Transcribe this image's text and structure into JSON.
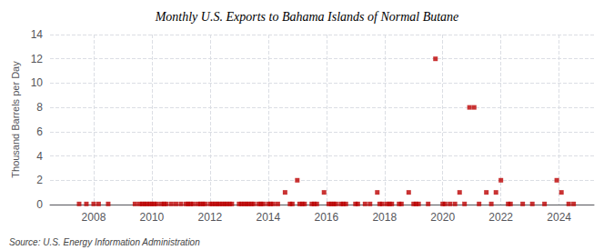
{
  "chart_data": {
    "type": "scatter",
    "title": "Monthly U.S. Exports to Bahama Islands of Normal Butane",
    "ylabel": "Thousand Barrels per Day",
    "annotations": [
      "Source: U.S. Energy Information Administration"
    ],
    "color": "#bb0000",
    "marker": "square",
    "grid": true,
    "xlim": [
      2006.5,
      2025.2
    ],
    "ylim": [
      0,
      14
    ],
    "xticks": [
      2008,
      2010,
      2012,
      2014,
      2016,
      2018,
      2020,
      2022,
      2024
    ],
    "yticks": [
      0,
      2,
      4,
      6,
      8,
      10,
      12,
      14
    ],
    "x": [
      2007.5,
      2007.75,
      2008.0,
      2008.17,
      2008.5,
      2009.42,
      2009.58,
      2009.67,
      2009.75,
      2009.83,
      2009.92,
      2010.0,
      2010.08,
      2010.17,
      2010.33,
      2010.42,
      2010.5,
      2010.67,
      2010.83,
      2011.0,
      2011.17,
      2011.25,
      2011.33,
      2011.42,
      2011.58,
      2011.67,
      2011.75,
      2011.83,
      2012.0,
      2012.08,
      2012.17,
      2012.25,
      2012.33,
      2012.42,
      2012.5,
      2012.58,
      2012.67,
      2012.75,
      2013.0,
      2013.08,
      2013.17,
      2013.25,
      2013.33,
      2013.42,
      2013.5,
      2013.67,
      2013.75,
      2013.83,
      2014.0,
      2014.08,
      2014.17,
      2014.33,
      2014.58,
      2014.75,
      2014.83,
      2015.0,
      2015.08,
      2015.17,
      2015.25,
      2015.5,
      2015.58,
      2015.67,
      2015.92,
      2016.08,
      2016.17,
      2016.25,
      2016.33,
      2016.5,
      2016.58,
      2016.67,
      2017.0,
      2017.08,
      2017.33,
      2017.5,
      2017.75,
      2017.83,
      2017.92,
      2018.08,
      2018.17,
      2018.25,
      2018.5,
      2018.58,
      2018.83,
      2019.0,
      2019.08,
      2019.17,
      2019.5,
      2019.75,
      2020.0,
      2020.08,
      2020.25,
      2020.42,
      2020.58,
      2020.75,
      2020.92,
      2021.08,
      2021.25,
      2021.5,
      2021.67,
      2021.83,
      2022.0,
      2022.25,
      2022.33,
      2022.75,
      2023.08,
      2023.5,
      2023.92,
      2024.08,
      2024.33,
      2024.5
    ],
    "values": [
      0.05,
      0.05,
      0.05,
      0.05,
      0.05,
      0.05,
      0.05,
      0.05,
      0.05,
      0.05,
      0.05,
      0.05,
      0.05,
      0.05,
      0.05,
      0.05,
      0.05,
      0.05,
      0.05,
      0.05,
      0.05,
      0.05,
      0.05,
      0.05,
      0.05,
      0.05,
      0.05,
      0.05,
      0.05,
      0.05,
      0.05,
      0.05,
      0.05,
      0.05,
      0.05,
      0.05,
      0.05,
      0.05,
      0.05,
      0.05,
      0.05,
      0.05,
      0.05,
      0.05,
      0.05,
      0.05,
      0.05,
      0.05,
      0.05,
      0.05,
      0.05,
      0.05,
      1.0,
      0.05,
      0.05,
      2.0,
      0.05,
      0.05,
      0.05,
      0.05,
      0.05,
      0.05,
      1.0,
      0.05,
      0.05,
      0.05,
      0.05,
      0.05,
      0.05,
      0.05,
      0.05,
      0.05,
      0.05,
      0.05,
      1.0,
      0.05,
      0.05,
      0.05,
      0.05,
      0.05,
      0.05,
      0.05,
      1.0,
      0.05,
      0.05,
      0.05,
      0.05,
      12.0,
      0.05,
      0.05,
      0.05,
      0.05,
      1.0,
      0.05,
      8.0,
      8.0,
      0.05,
      1.0,
      0.05,
      1.0,
      2.0,
      0.05,
      0.05,
      0.05,
      0.05,
      0.05,
      2.0,
      1.0,
      0.05,
      0.05
    ]
  }
}
